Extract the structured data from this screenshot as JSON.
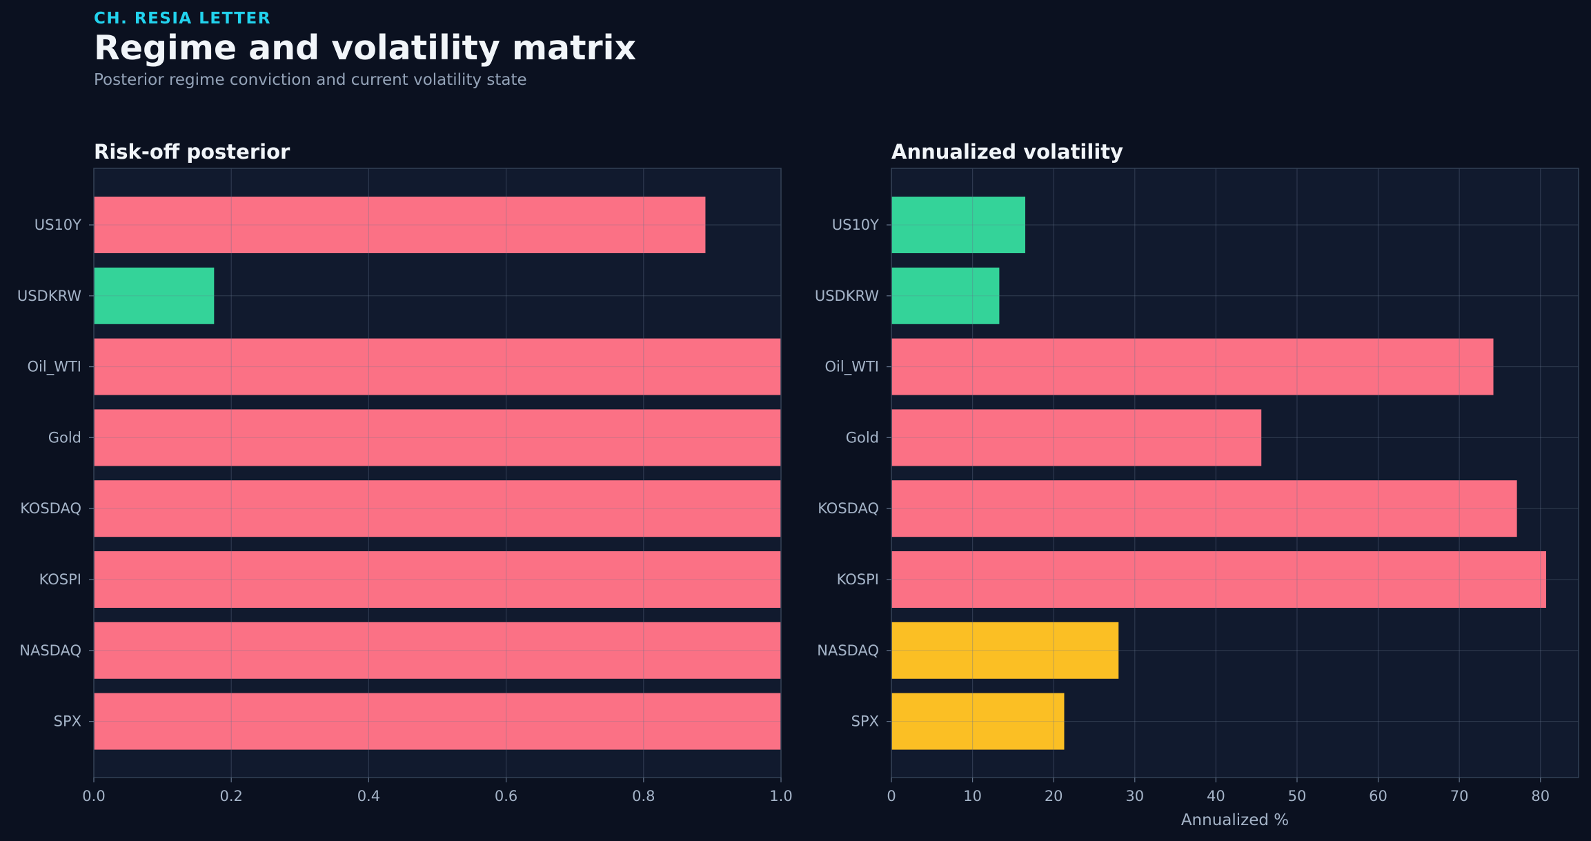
{
  "header": {
    "kicker": "CH. RESIA LETTER",
    "title": "Regime and volatility matrix",
    "subtitle": "Posterior regime conviction and current volatility state"
  },
  "colors": {
    "background": "#0b1120",
    "panel": "#111a2e",
    "risk_off": "#fb7185",
    "low": "#34d399",
    "mid": "#fbbf24",
    "kicker": "#22d3ee"
  },
  "chart_data": [
    {
      "type": "bar",
      "orientation": "horizontal",
      "title": "Risk-off posterior",
      "xlabel": "",
      "ylabel": "",
      "categories": [
        "US10Y",
        "USDKRW",
        "Oil_WTI",
        "Gold",
        "KOSDAQ",
        "KOSPI",
        "NASDAQ",
        "SPX"
      ],
      "values": [
        0.89,
        0.175,
        1.0,
        1.0,
        1.0,
        1.0,
        1.0,
        1.0
      ],
      "bar_colors": [
        "#fb7185",
        "#34d399",
        "#fb7185",
        "#fb7185",
        "#fb7185",
        "#fb7185",
        "#fb7185",
        "#fb7185"
      ],
      "xlim": [
        0,
        1.0
      ],
      "xticks": [
        0.0,
        0.2,
        0.4,
        0.6,
        0.8,
        1.0
      ],
      "xtick_labels": [
        "0.0",
        "0.2",
        "0.4",
        "0.6",
        "0.8",
        "1.0"
      ],
      "grid": true
    },
    {
      "type": "bar",
      "orientation": "horizontal",
      "title": "Annualized volatility",
      "xlabel": "Annualized %",
      "ylabel": "",
      "categories": [
        "US10Y",
        "USDKRW",
        "Oil_WTI",
        "Gold",
        "KOSDAQ",
        "KOSPI",
        "NASDAQ",
        "SPX"
      ],
      "values": [
        16.5,
        13.3,
        74.2,
        45.6,
        77.1,
        80.7,
        28.0,
        21.3
      ],
      "bar_colors": [
        "#34d399",
        "#34d399",
        "#fb7185",
        "#fb7185",
        "#fb7185",
        "#fb7185",
        "#fbbf24",
        "#fbbf24"
      ],
      "xlim": [
        0,
        84.7
      ],
      "xticks": [
        0,
        10,
        20,
        30,
        40,
        50,
        60,
        70,
        80
      ],
      "xtick_labels": [
        "0",
        "10",
        "20",
        "30",
        "40",
        "50",
        "60",
        "70",
        "80"
      ],
      "grid": true
    }
  ]
}
